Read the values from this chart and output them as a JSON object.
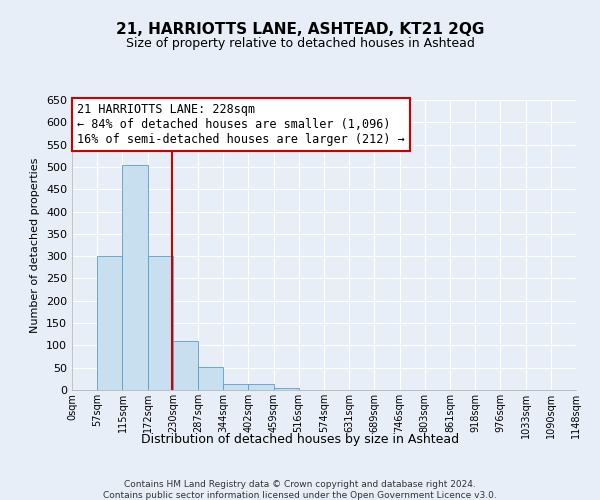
{
  "title": "21, HARRIOTTS LANE, ASHTEAD, KT21 2QG",
  "subtitle": "Size of property relative to detached houses in Ashtead",
  "xlabel": "Distribution of detached houses by size in Ashtead",
  "ylabel": "Number of detached properties",
  "bin_edges": [
    0,
    57,
    115,
    172,
    230,
    287,
    344,
    402,
    459,
    516,
    574,
    631,
    689,
    746,
    803,
    861,
    918,
    976,
    1033,
    1090,
    1148
  ],
  "bin_labels": [
    "0sqm",
    "57sqm",
    "115sqm",
    "172sqm",
    "230sqm",
    "287sqm",
    "344sqm",
    "402sqm",
    "459sqm",
    "516sqm",
    "574sqm",
    "631sqm",
    "689sqm",
    "746sqm",
    "803sqm",
    "861sqm",
    "918sqm",
    "976sqm",
    "1033sqm",
    "1090sqm",
    "1148sqm"
  ],
  "counts": [
    0,
    300,
    505,
    300,
    110,
    52,
    14,
    13,
    5,
    0,
    0,
    0,
    0,
    0,
    0,
    0,
    0,
    0,
    0,
    0
  ],
  "bar_color": "#c8dff0",
  "bar_edge_color": "#5a9ec8",
  "reference_line_x": 228,
  "reference_line_color": "#cc0000",
  "ylim": [
    0,
    650
  ],
  "yticks": [
    0,
    50,
    100,
    150,
    200,
    250,
    300,
    350,
    400,
    450,
    500,
    550,
    600,
    650
  ],
  "annotation_title": "21 HARRIOTTS LANE: 228sqm",
  "annotation_line1": "← 84% of detached houses are smaller (1,096)",
  "annotation_line2": "16% of semi-detached houses are larger (212) →",
  "footer_line1": "Contains HM Land Registry data © Crown copyright and database right 2024.",
  "footer_line2": "Contains public sector information licensed under the Open Government Licence v3.0.",
  "background_color": "#e8eef8"
}
